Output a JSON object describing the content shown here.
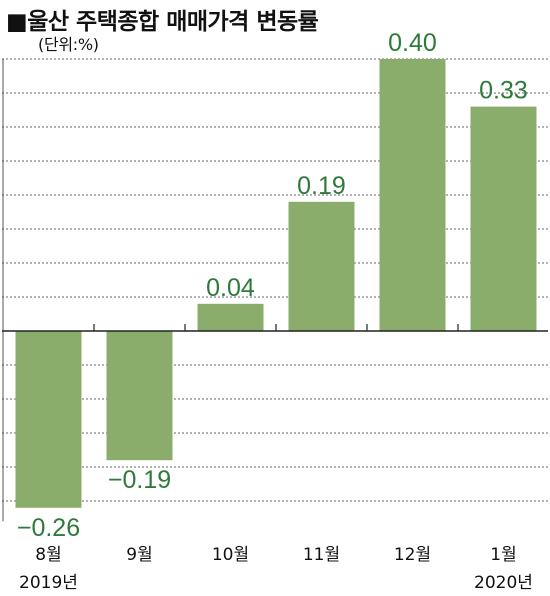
{
  "chart_data": {
    "type": "bar",
    "title": "■울산 주택종합 매매가격 변동률",
    "unit": "(단위:%)",
    "categories": [
      "8월",
      "9월",
      "10월",
      "11월",
      "12월",
      "1월"
    ],
    "year_labels": [
      "2019년",
      "",
      "",
      "",
      "",
      "2020년"
    ],
    "values": [
      -0.26,
      -0.19,
      0.04,
      0.19,
      0.4,
      0.33
    ],
    "value_labels": [
      "−0.26",
      "−0.19",
      "0.04",
      "0.19",
      "0.40",
      "0.33"
    ],
    "ylim": [
      -0.28,
      0.4
    ],
    "gridlines": [
      -0.25,
      -0.2,
      -0.15,
      -0.1,
      -0.05,
      0.05,
      0.1,
      0.15,
      0.2,
      0.25,
      0.3,
      0.35,
      0.4
    ],
    "grid": "dashed",
    "bar_color": "#8aad6b",
    "value_label_color": "#2f7a3a"
  }
}
